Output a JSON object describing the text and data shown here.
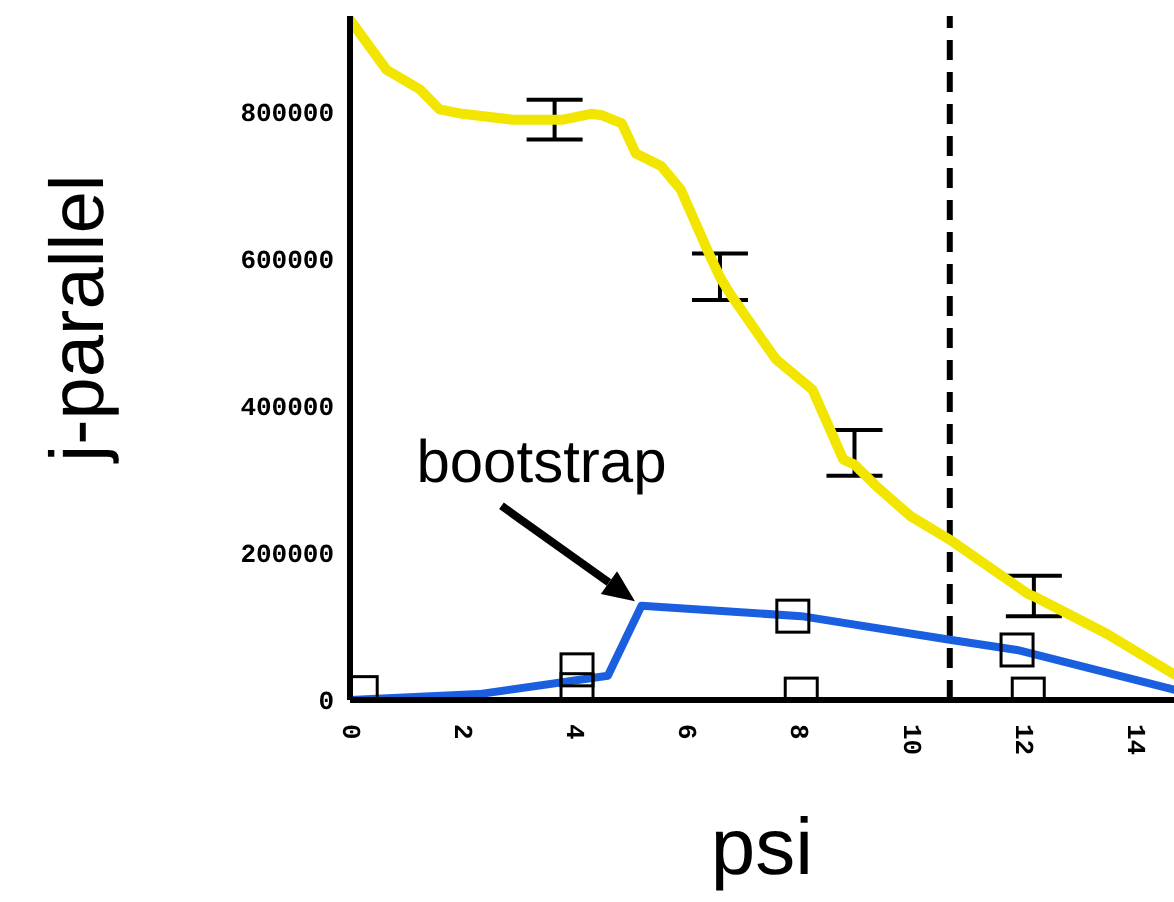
{
  "chart_data": {
    "type": "line",
    "xlabel": "psi",
    "ylabel": "j-parallel",
    "xlim": [
      0,
      14.7
    ],
    "xticks": [
      0,
      2,
      4,
      6,
      8,
      10,
      12,
      14
    ],
    "ylim": [
      0,
      930000
    ],
    "yticks": [
      0,
      200000,
      400000,
      600000,
      800000
    ],
    "line_style": "solid",
    "series": [
      {
        "color": "#f2e600",
        "x": [
          0,
          0.65,
          1.25,
          1.6,
          2.0,
          2.9,
          3.65,
          3.8,
          4.3,
          4.5,
          4.85,
          5.1,
          5.55,
          5.9,
          6.45,
          6.6,
          6.8,
          7.35,
          7.6,
          8.25,
          8.8,
          9.0,
          9.4,
          10.0,
          10.7,
          12.1,
          12.2,
          13.5,
          14.7
        ],
        "values": [
          925000,
          857000,
          830000,
          803000,
          797000,
          789000,
          789000,
          789000,
          797000,
          795000,
          784000,
          743000,
          726000,
          694000,
          599000,
          575000,
          550000,
          490000,
          463000,
          422000,
          327000,
          320000,
          290000,
          250000,
          218000,
          144000,
          141000,
          90000,
          35000
        ],
        "errors": [
          null,
          null,
          null,
          null,
          null,
          null,
          [
            762000,
            816000
          ],
          null,
          null,
          null,
          null,
          null,
          null,
          null,
          null,
          [
            544000,
            607000
          ],
          null,
          null,
          null,
          null,
          null,
          [
            305000,
            367000
          ],
          null,
          null,
          null,
          null,
          [
            114000,
            169000
          ],
          null,
          null
        ]
      },
      {
        "color": "#1a5fe0",
        "x": [
          0,
          2.3,
          4.6,
          5.2,
          8.05,
          10.7,
          11.9,
          14.7
        ],
        "values": [
          0,
          8000,
          33000,
          128000,
          114000,
          82000,
          68000,
          14000
        ]
      },
      {
        "type": "scatter",
        "marker": "square",
        "color": "#000000",
        "x": [
          0.2,
          4.05,
          4.05,
          7.9,
          8.05,
          11.9,
          12.1
        ],
        "values": [
          10000,
          41000,
          14000,
          114000,
          8000,
          68000,
          8000
        ]
      }
    ],
    "ref_lines": [
      {
        "axis": "x",
        "value": 10.7,
        "color": "#000000",
        "line_style": "dashed"
      }
    ],
    "annotations": [
      {
        "text": "bootstrap",
        "x": 5.2,
        "y": 128000
      }
    ]
  }
}
